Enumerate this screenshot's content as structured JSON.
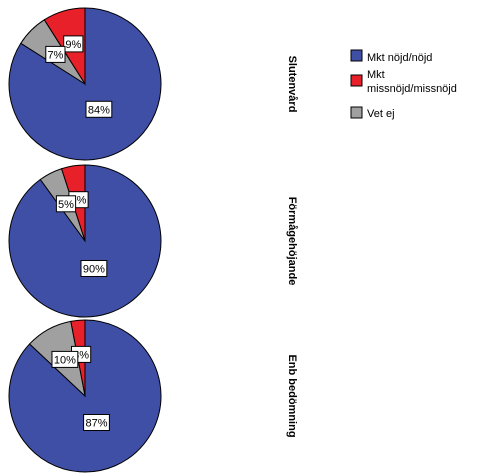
{
  "chart_data": {
    "type": "pie",
    "categories": [
      "Mkt nöjd/nöjd",
      "Mkt missnöjd/missnöjd",
      "Vet ej"
    ],
    "colors": [
      "#3f4fa6",
      "#e8202a",
      "#a0a0a0"
    ],
    "legend": {
      "position": "right",
      "entries": [
        {
          "lines": [
            "Mkt nöjd/nöjd"
          ]
        },
        {
          "lines": [
            "Mkt",
            "missnöjd/missnöjd"
          ]
        },
        {
          "lines": [
            "Vet ej"
          ]
        }
      ]
    },
    "panels": [
      {
        "title": "Slutenvård",
        "values": [
          84,
          9,
          7
        ],
        "labels": [
          "84%",
          "9%",
          "7%"
        ]
      },
      {
        "title": "Förmågehöjande",
        "values": [
          90,
          5,
          5
        ],
        "labels": [
          "90%",
          "5%",
          "5%"
        ]
      },
      {
        "title": "Enb bedömning",
        "values": [
          87,
          3,
          10
        ],
        "labels": [
          "87%",
          "3%",
          "10%"
        ]
      }
    ]
  }
}
